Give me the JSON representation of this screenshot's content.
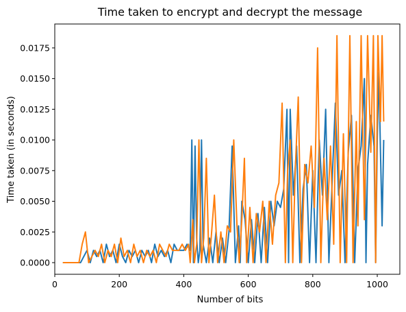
{
  "chart_data": {
    "type": "line",
    "title": "Time taken to encrypt and decrypt the message",
    "xlabel": "Number of bits",
    "ylabel": "Time taken (in seconds)",
    "xlim": [
      0,
      1070
    ],
    "ylim": [
      -0.00095,
      0.01945
    ],
    "xticks": [
      0,
      200,
      400,
      600,
      800,
      1000
    ],
    "xtick_labels": [
      "0",
      "200",
      "400",
      "600",
      "800",
      "1000"
    ],
    "yticks": [
      0.0,
      0.0025,
      0.005,
      0.0075,
      0.01,
      0.0125,
      0.015,
      0.0175
    ],
    "ytick_labels": [
      "0.0000",
      "0.0025",
      "0.0050",
      "0.0075",
      "0.0100",
      "0.0125",
      "0.0150",
      "0.0175"
    ],
    "grid": false,
    "legend": "none",
    "series": [
      {
        "color": "#1f77b4",
        "x": [
          25,
          80,
          90,
          100,
          110,
          120,
          130,
          140,
          150,
          160,
          170,
          180,
          190,
          200,
          210,
          220,
          230,
          240,
          250,
          260,
          270,
          280,
          290,
          300,
          310,
          320,
          330,
          340,
          350,
          360,
          370,
          380,
          390,
          400,
          410,
          420,
          425,
          430,
          435,
          440,
          445,
          450,
          455,
          460,
          470,
          480,
          490,
          500,
          510,
          520,
          530,
          540,
          550,
          560,
          570,
          575,
          580,
          590,
          600,
          610,
          620,
          630,
          640,
          650,
          660,
          670,
          680,
          690,
          700,
          710,
          720,
          725,
          730,
          740,
          750,
          760,
          770,
          780,
          790,
          800,
          810,
          820,
          830,
          840,
          850,
          860,
          870,
          880,
          890,
          900,
          910,
          920,
          930,
          940,
          950,
          960,
          965,
          970,
          980,
          990,
          995,
          1000,
          1005,
          1010,
          1015,
          1020
        ],
        "y": [
          0.0,
          0.0,
          0.0005,
          0.001,
          0.0,
          0.001,
          0.0005,
          0.001,
          0.0,
          0.0015,
          0.0005,
          0.001,
          0.0,
          0.0015,
          0.0005,
          0.0,
          0.001,
          0.0005,
          0.001,
          0.0,
          0.001,
          0.0005,
          0.001,
          0.0,
          0.0015,
          0.0005,
          0.001,
          0.0005,
          0.001,
          0.0,
          0.0015,
          0.001,
          0.001,
          0.001,
          0.0015,
          0.001,
          0.01,
          0.0,
          0.0095,
          0.002,
          0.0,
          0.001,
          0.01,
          0.0015,
          0.0,
          0.002,
          0.0,
          0.0025,
          0.0,
          0.002,
          0.0,
          0.0025,
          0.0095,
          0.0,
          0.003,
          0.0,
          0.005,
          0.0035,
          0.0,
          0.0035,
          0.0,
          0.004,
          0.0,
          0.0045,
          0.0,
          0.005,
          0.003,
          0.005,
          0.0045,
          0.006,
          0.0125,
          0.0,
          0.0125,
          0.0055,
          0.0095,
          0.0,
          0.006,
          0.008,
          0.0,
          0.0075,
          0.0,
          0.01,
          0.0055,
          0.0125,
          0.0,
          0.0065,
          0.013,
          0.0055,
          0.0075,
          0.0,
          0.009,
          0.012,
          0.0,
          0.0075,
          0.0095,
          0.015,
          0.0,
          0.008,
          0.012,
          0.0095,
          0.0,
          0.01,
          0.0155,
          0.009,
          0.003,
          0.01
        ]
      },
      {
        "color": "#ff7f0e",
        "x": [
          25,
          75,
          85,
          95,
          105,
          115,
          125,
          135,
          145,
          155,
          165,
          175,
          185,
          195,
          205,
          215,
          225,
          235,
          245,
          255,
          265,
          275,
          285,
          295,
          305,
          315,
          325,
          335,
          345,
          355,
          365,
          375,
          385,
          395,
          405,
          415,
          420,
          428,
          433,
          440,
          447,
          455,
          462,
          470,
          478,
          485,
          495,
          505,
          515,
          525,
          535,
          545,
          555,
          565,
          572,
          580,
          588,
          595,
          605,
          615,
          625,
          635,
          645,
          655,
          665,
          675,
          685,
          695,
          705,
          715,
          722,
          730,
          738,
          745,
          755,
          765,
          775,
          785,
          795,
          805,
          815,
          825,
          835,
          845,
          855,
          865,
          875,
          885,
          895,
          905,
          915,
          925,
          935,
          940,
          950,
          960,
          970,
          980,
          988,
          995,
          1002,
          1010,
          1015,
          1020
        ],
        "y": [
          0.0,
          0.0,
          0.0015,
          0.0025,
          0.0,
          0.0005,
          0.001,
          0.0005,
          0.0015,
          0.0,
          0.001,
          0.0005,
          0.0015,
          0.0,
          0.002,
          0.0005,
          0.001,
          0.0,
          0.0015,
          0.0005,
          0.001,
          0.0,
          0.001,
          0.0005,
          0.001,
          0.0,
          0.0015,
          0.001,
          0.0005,
          0.0015,
          0.001,
          0.001,
          0.001,
          0.0015,
          0.001,
          0.0015,
          0.0,
          0.0035,
          0.0,
          0.0015,
          0.01,
          0.0,
          0.002,
          0.0085,
          0.0,
          0.002,
          0.0055,
          0.0,
          0.0025,
          0.0,
          0.003,
          0.0025,
          0.01,
          0.003,
          0.0,
          0.0035,
          0.0085,
          0.0,
          0.0045,
          0.0,
          0.004,
          0.0025,
          0.005,
          0.0,
          0.005,
          0.0015,
          0.0055,
          0.0065,
          0.013,
          0.0,
          0.0075,
          0.01,
          0.0,
          0.007,
          0.0135,
          0.0,
          0.008,
          0.0065,
          0.0095,
          0.0045,
          0.0175,
          0.0,
          0.0085,
          0.0035,
          0.0095,
          0.0015,
          0.0185,
          0.0,
          0.0105,
          0.0,
          0.0185,
          0.0,
          0.0115,
          0.003,
          0.0185,
          0.0035,
          0.0185,
          0.009,
          0.0185,
          0.0,
          0.0185,
          0.0115,
          0.0185,
          0.0115
        ]
      }
    ]
  }
}
